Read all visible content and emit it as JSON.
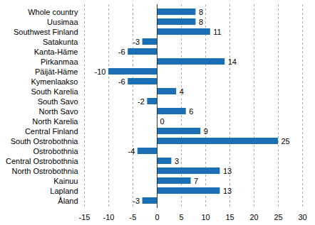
{
  "chart_data": {
    "type": "bar",
    "orientation": "horizontal",
    "categories": [
      "Whole country",
      "Uusimaa",
      "Southwest Finland",
      "Satakunta",
      "Kanta-Häme",
      "Pirkanmaa",
      "Päijät-Häme",
      "Kymenlaakso",
      "South Karelia",
      "South Savo",
      "North Savo",
      "North Karelia",
      "Central Finland",
      "South Ostrobothnia",
      "Ostrobothnia",
      "Central Ostrobothnia",
      "North Ostrobothnia",
      "Kainuu",
      "Lapland",
      "Åland"
    ],
    "values": [
      8,
      8,
      11,
      -3,
      -6,
      14,
      -10,
      -6,
      4,
      -2,
      6,
      0,
      9,
      25,
      -4,
      3,
      13,
      7,
      13,
      -3
    ],
    "color": "#1b6fb5",
    "xlim": [
      -15,
      30
    ],
    "xticks": [
      -15,
      -10,
      -5,
      0,
      5,
      10,
      15,
      20,
      25,
      30
    ],
    "grid": true,
    "data_labels": true
  }
}
